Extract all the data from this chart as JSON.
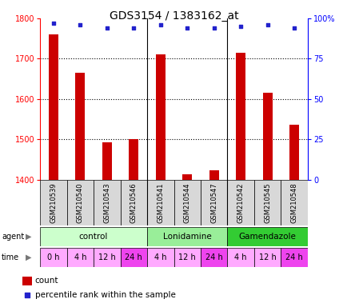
{
  "title": "GDS3154 / 1383162_at",
  "samples": [
    "GSM210539",
    "GSM210540",
    "GSM210543",
    "GSM210546",
    "GSM210541",
    "GSM210544",
    "GSM210547",
    "GSM210542",
    "GSM210545",
    "GSM210548"
  ],
  "counts": [
    1760,
    1665,
    1493,
    1500,
    1710,
    1413,
    1423,
    1715,
    1615,
    1537
  ],
  "percentiles": [
    97,
    96,
    94,
    94,
    96,
    94,
    94,
    95,
    96,
    94
  ],
  "ylim_left": [
    1400,
    1800
  ],
  "ylim_right": [
    0,
    100
  ],
  "yticks_left": [
    1400,
    1500,
    1600,
    1700,
    1800
  ],
  "yticks_right": [
    0,
    25,
    50,
    75,
    100
  ],
  "ytick_right_labels": [
    "0",
    "25",
    "50",
    "75",
    "100%"
  ],
  "bar_color": "#cc0000",
  "dot_color": "#2222cc",
  "agent_groups": [
    {
      "label": "control",
      "start": 0,
      "end": 4,
      "color": "#ccffcc"
    },
    {
      "label": "Lonidamine",
      "start": 4,
      "end": 7,
      "color": "#99ee99"
    },
    {
      "label": "Gamendazole",
      "start": 7,
      "end": 10,
      "color": "#33cc33"
    }
  ],
  "time_labels": [
    "0 h",
    "4 h",
    "12 h",
    "24 h",
    "4 h",
    "12 h",
    "24 h",
    "4 h",
    "12 h",
    "24 h"
  ],
  "time_colors": [
    "#ffaaff",
    "#ffaaff",
    "#ffaaff",
    "#ee44ee",
    "#ffaaff",
    "#ffaaff",
    "#ee44ee",
    "#ffaaff",
    "#ffaaff",
    "#ee44ee"
  ],
  "legend_count_color": "#cc0000",
  "legend_dot_color": "#2222cc",
  "title_fontsize": 10,
  "tick_fontsize": 7,
  "sample_fontsize": 6,
  "bar_width": 0.35,
  "group_dividers": [
    3.5,
    6.5
  ]
}
